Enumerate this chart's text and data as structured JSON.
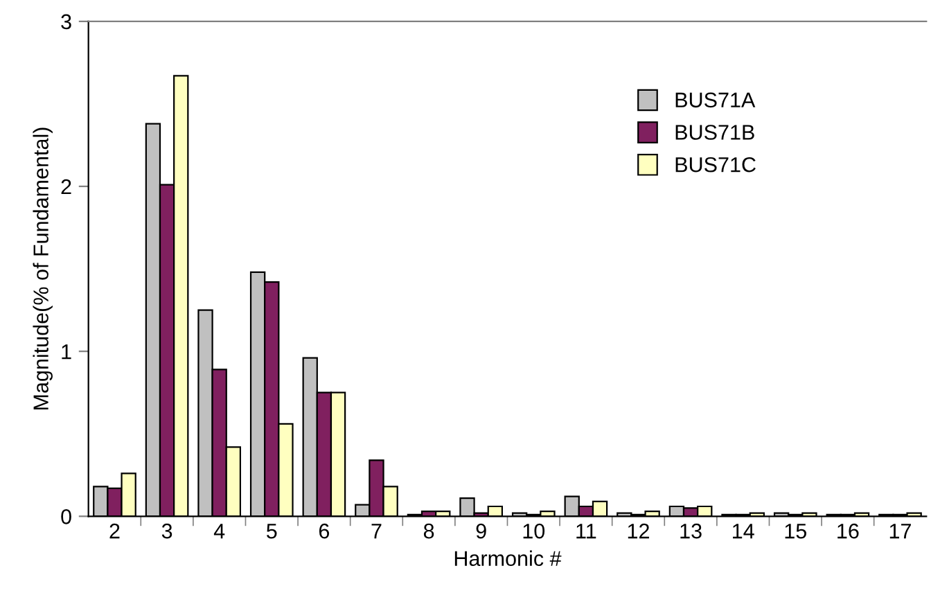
{
  "chart_data": {
    "type": "bar",
    "xlabel": "Harmonic #",
    "ylabel": "Magnitude(% of Fundamental)",
    "categories": [
      "2",
      "3",
      "4",
      "5",
      "6",
      "7",
      "8",
      "9",
      "10",
      "11",
      "12",
      "13",
      "14",
      "15",
      "16",
      "17"
    ],
    "series": [
      {
        "name": "BUS71A",
        "color": "#c0c0c0",
        "values": [
          0.18,
          2.38,
          1.25,
          1.48,
          0.96,
          0.07,
          0.01,
          0.11,
          0.02,
          0.12,
          0.02,
          0.06,
          0.01,
          0.02,
          0.01,
          0.01
        ]
      },
      {
        "name": "BUS71B",
        "color": "#80205f",
        "values": [
          0.17,
          2.01,
          0.89,
          1.42,
          0.75,
          0.34,
          0.03,
          0.02,
          0.01,
          0.06,
          0.01,
          0.05,
          0.01,
          0.01,
          0.01,
          0.01
        ]
      },
      {
        "name": "BUS71C",
        "color": "#ffffc0",
        "values": [
          0.26,
          2.67,
          0.42,
          0.56,
          0.75,
          0.18,
          0.03,
          0.06,
          0.03,
          0.09,
          0.03,
          0.06,
          0.02,
          0.02,
          0.02,
          0.02
        ]
      }
    ],
    "ylim": [
      0,
      3
    ],
    "yticks": [
      0,
      1,
      2,
      3
    ],
    "grid": false,
    "legend": "top right"
  }
}
